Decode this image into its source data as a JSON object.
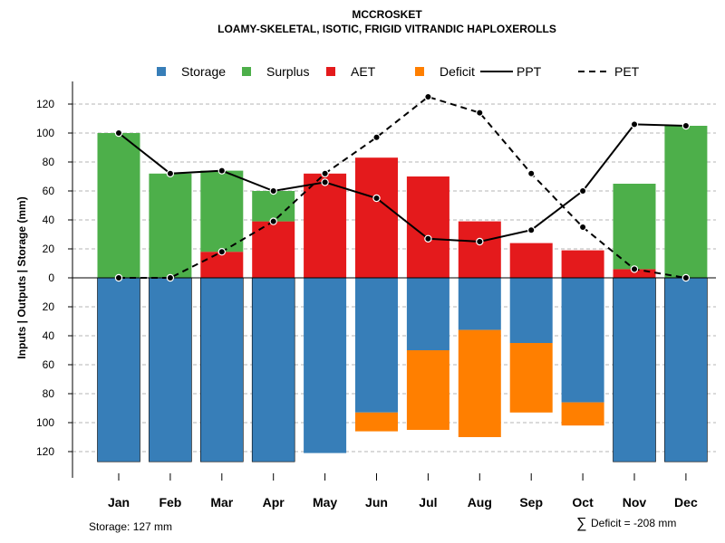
{
  "chart_data": {
    "type": "bar",
    "title": "MCCROSKET",
    "subtitle": "LOAMY-SKELETAL, ISOTIC, FRIGID VITRANDIC HAPLOXEROLLS",
    "ylabel": "Inputs | Outputs | Storage    (mm)",
    "ylim": [
      -130,
      130
    ],
    "y_ticks": [
      120,
      100,
      80,
      60,
      40,
      20,
      0,
      -20,
      -40,
      -60,
      -80,
      -100,
      -120
    ],
    "y_tick_labels": [
      "120",
      "100",
      "80",
      "60",
      "40",
      "20",
      "0",
      "20",
      "40",
      "60",
      "80",
      "100",
      "120"
    ],
    "categories": [
      "Jan",
      "Feb",
      "Mar",
      "Apr",
      "May",
      "Jun",
      "Jul",
      "Aug",
      "Sep",
      "Oct",
      "Nov",
      "Dec"
    ],
    "series": [
      {
        "name": "Storage",
        "kind": "bar",
        "color": "#377EB8",
        "values": [
          127,
          127,
          127,
          127,
          121,
          93,
          50,
          36,
          45,
          86,
          127,
          127
        ]
      },
      {
        "name": "Surplus",
        "kind": "bar",
        "color": "#4DAF4A",
        "values": [
          100,
          72,
          56,
          21,
          0,
          0,
          0,
          0,
          0,
          0,
          59,
          105
        ]
      },
      {
        "name": "AET",
        "kind": "bar",
        "color": "#E41A1C",
        "values": [
          0,
          0,
          18,
          39,
          72,
          83,
          70,
          39,
          24,
          19,
          6,
          0
        ]
      },
      {
        "name": "Deficit",
        "kind": "bar",
        "color": "#FF7F00",
        "values": [
          0,
          0,
          0,
          0,
          0,
          13,
          55,
          74,
          48,
          16,
          0,
          0
        ]
      },
      {
        "name": "PPT",
        "kind": "line",
        "style": "solid",
        "color": "#000000",
        "values": [
          100,
          72,
          74,
          60,
          66,
          55,
          27,
          25,
          33,
          60,
          106,
          105
        ]
      },
      {
        "name": "PET",
        "kind": "line",
        "style": "dashed",
        "color": "#000000",
        "values": [
          0,
          0,
          18,
          39,
          72,
          97,
          125,
          114,
          72,
          35,
          6,
          0
        ]
      }
    ],
    "legend": [
      "Storage",
      "Surplus",
      "AET",
      "Deficit",
      "PPT",
      "PET"
    ],
    "legend_position": "top",
    "grid": true,
    "storage_note": "Storage: 127 mm",
    "deficit_symbol": "∑",
    "deficit_note": "Deficit = -208 mm"
  }
}
